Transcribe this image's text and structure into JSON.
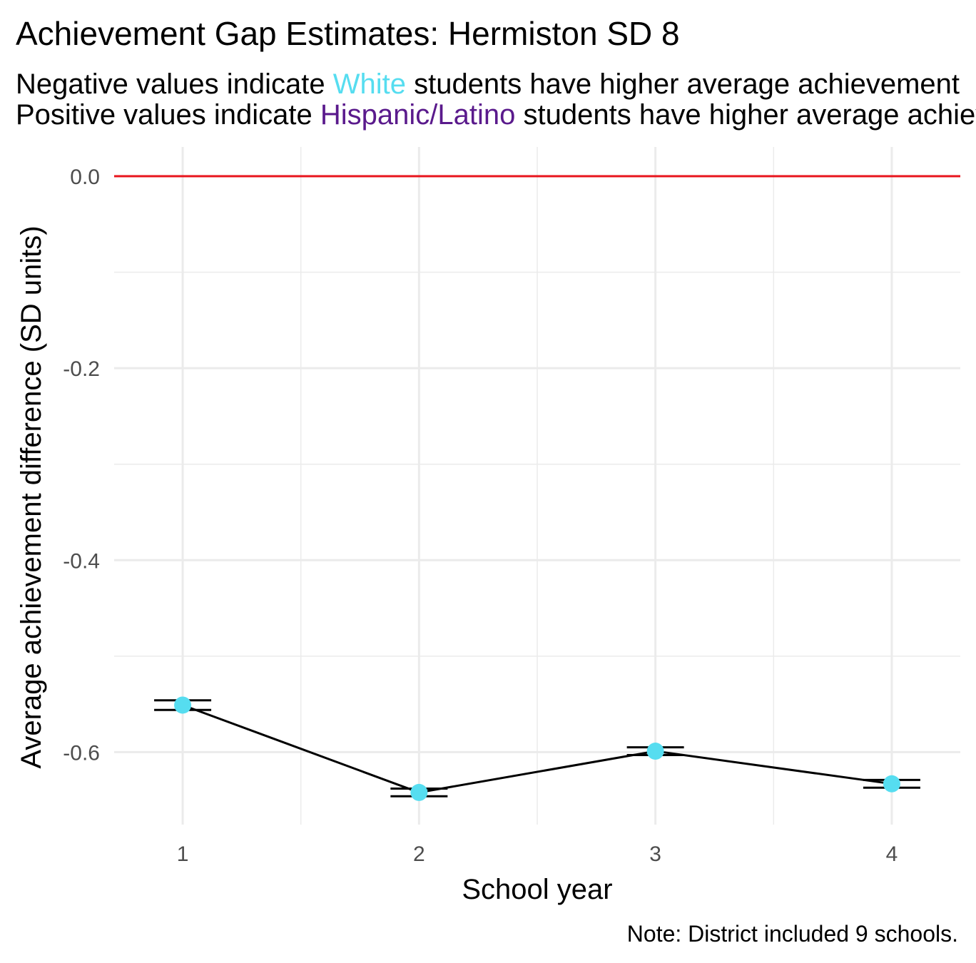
{
  "chart_data": {
    "type": "line",
    "title": "Achievement Gap Estimates: Hermiston SD 8",
    "subtitle_line1": {
      "before": "Negative values indicate ",
      "highlight": "White",
      "highlight_color": "#56ddf0",
      "after": " students have higher average achievement"
    },
    "subtitle_line2": {
      "before": "Positive values indicate ",
      "highlight": "Hispanic/Latino",
      "highlight_color": "#5a1a8c",
      "after": " students have higher average achievement"
    },
    "xlabel": "School year",
    "ylabel": "Average achievement difference (SD units)",
    "caption": "Note: District included 9 schools.",
    "x_ticks": [
      "1",
      "2",
      "3",
      "4"
    ],
    "y_ticks": [
      "0.0",
      "-0.2",
      "-0.4",
      "-0.6"
    ],
    "xlim": [
      0.71,
      4.29
    ],
    "ylim": [
      -0.6755,
      0.0305
    ],
    "grid": true,
    "reference_line": {
      "y": 0,
      "color": "#e8141c"
    },
    "point_color": "#56ddf0",
    "line_color": "#000000",
    "series": [
      {
        "x": [
          1,
          2,
          3,
          4
        ],
        "values": [
          -0.551,
          -0.642,
          -0.599,
          -0.633
        ],
        "error_low": [
          -0.556,
          -0.646,
          -0.603,
          -0.637
        ],
        "error_high": [
          -0.546,
          -0.638,
          -0.595,
          -0.629
        ]
      }
    ]
  }
}
